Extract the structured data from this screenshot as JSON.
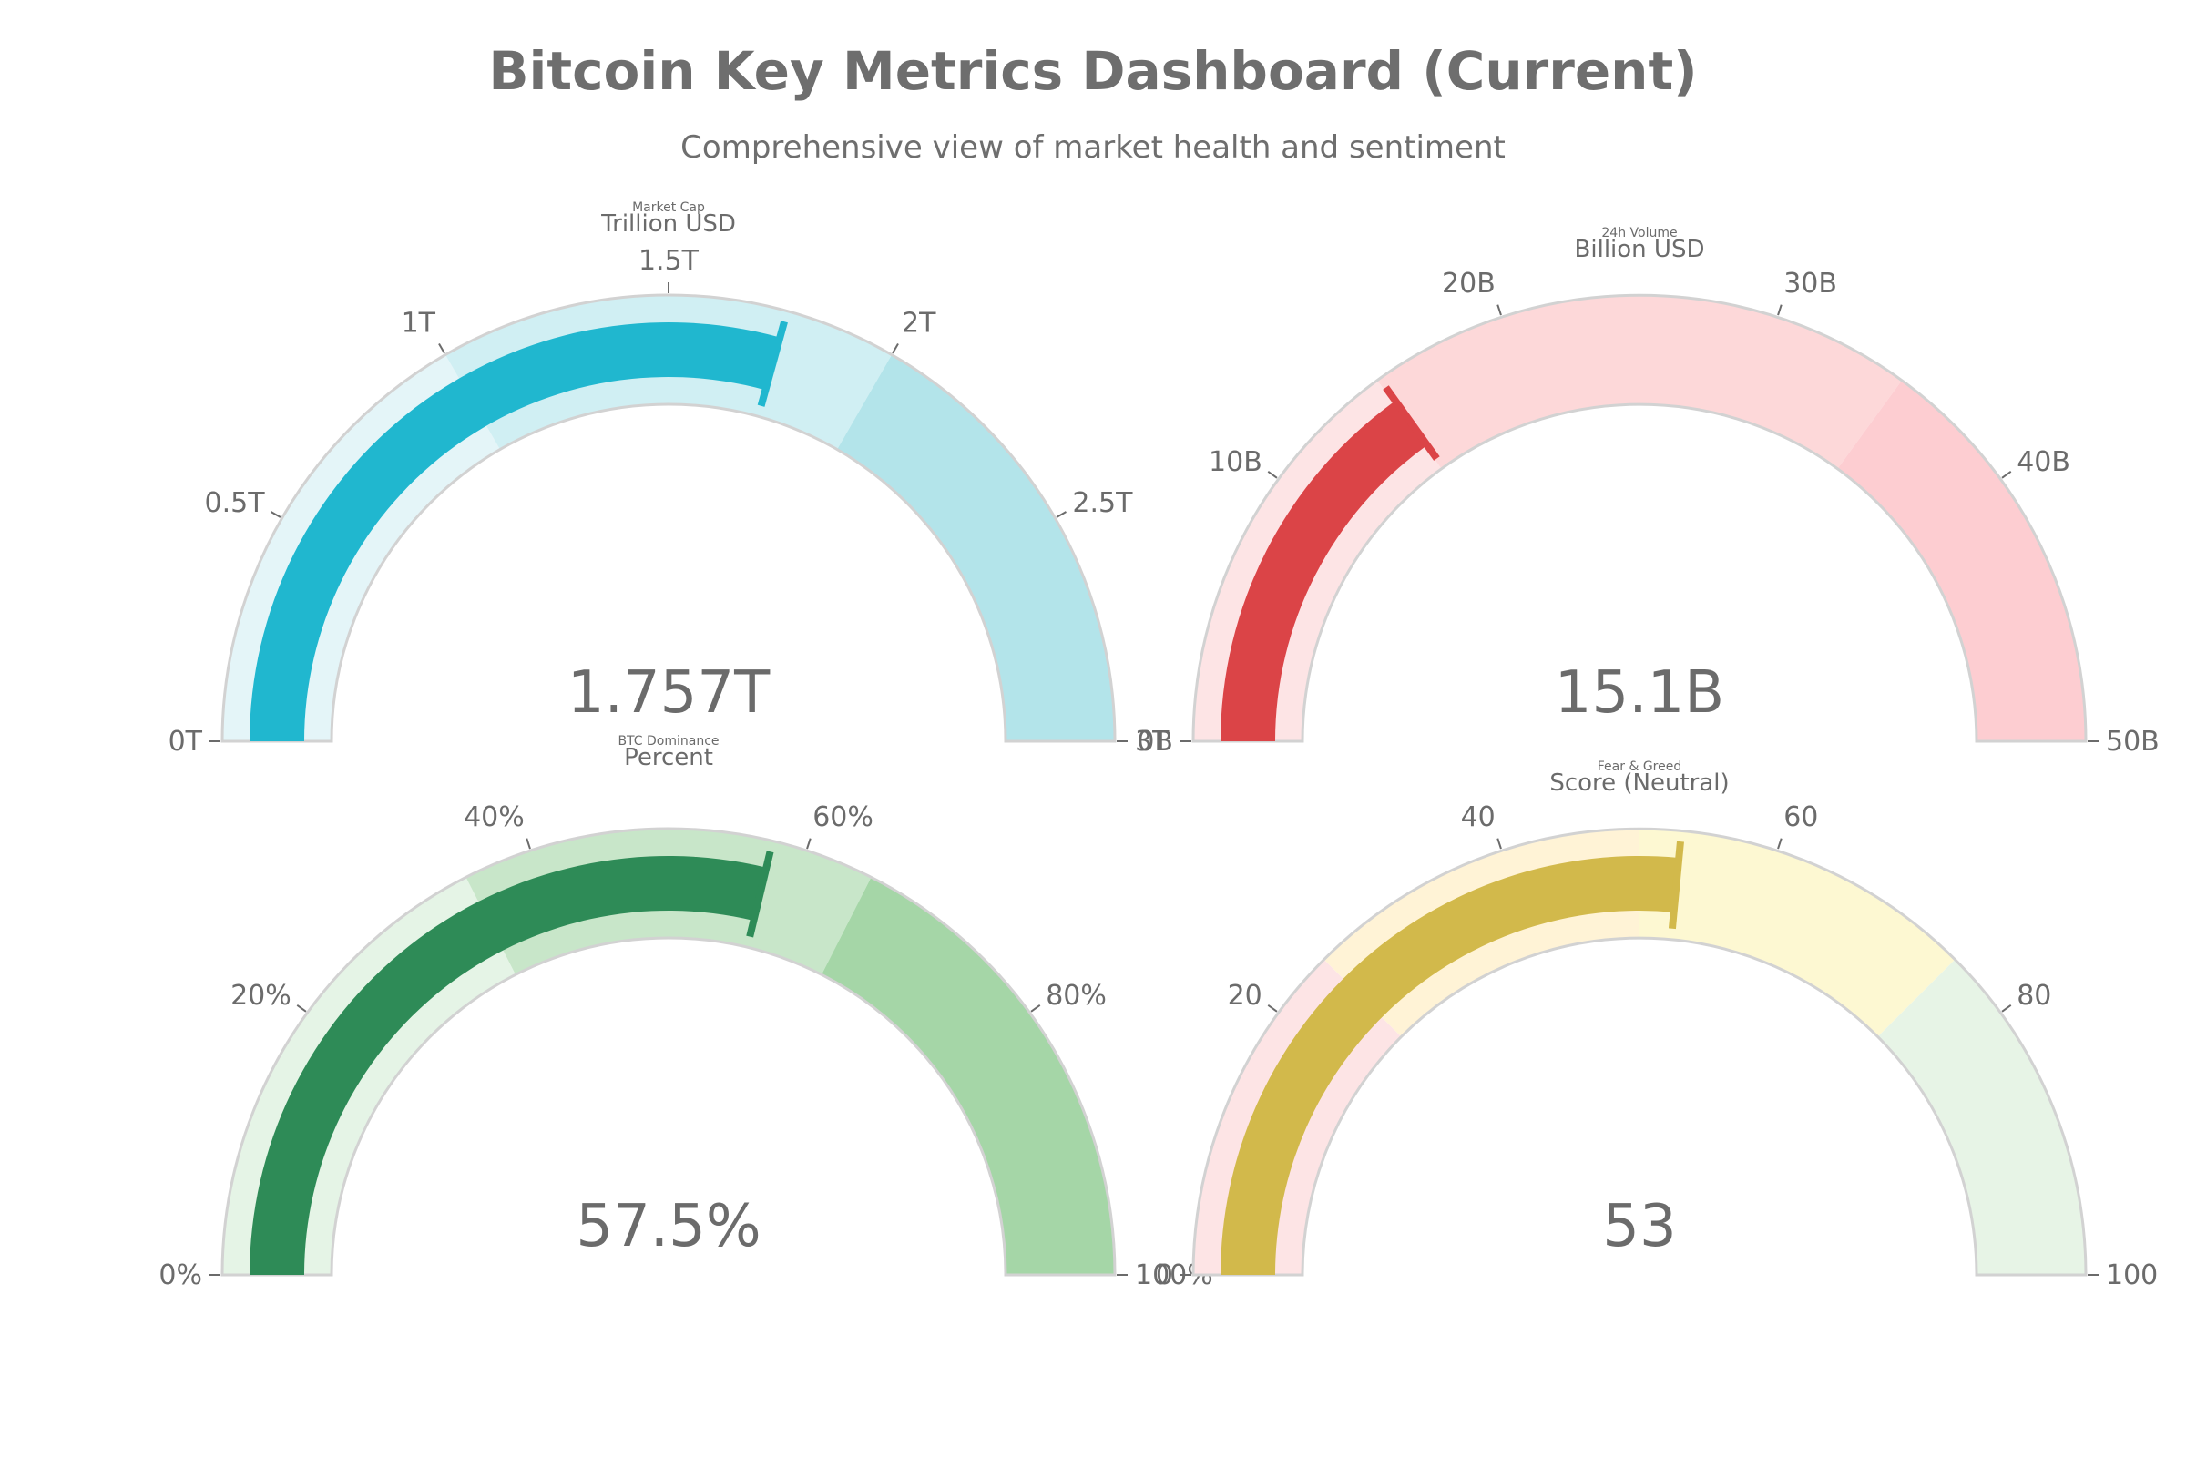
{
  "title": "Bitcoin Key Metrics Dashboard (Current)",
  "subtitle": "Comprehensive view of market health and sentiment",
  "chart_data": [
    {
      "type": "gauge",
      "title": "Market Cap",
      "unit_label": "Trillion USD",
      "value": 1.757,
      "value_label": "1.757T",
      "range": [
        0,
        3
      ],
      "ticks": [
        0,
        0.5,
        1,
        1.5,
        2,
        2.5,
        3
      ],
      "tick_labels": [
        "0T",
        "0.5T",
        "1T",
        "1.5T",
        "2T",
        "2.5T",
        "3T"
      ],
      "bar_color": "#20b7cf",
      "steps": [
        {
          "range": [
            0,
            1
          ],
          "color": "#e4f5f8"
        },
        {
          "range": [
            1,
            2
          ],
          "color": "#d0eff3"
        },
        {
          "range": [
            2,
            3
          ],
          "color": "#b3e4ea"
        }
      ]
    },
    {
      "type": "gauge",
      "title": "24h Volume",
      "unit_label": "Billion USD",
      "value": 15.1,
      "value_label": "15.1B",
      "range": [
        0,
        50
      ],
      "ticks": [
        0,
        10,
        20,
        30,
        40,
        50
      ],
      "tick_labels": [
        "0B",
        "10B",
        "20B",
        "30B",
        "40B",
        "50B"
      ],
      "bar_color": "#db4447",
      "steps": [
        {
          "range": [
            0,
            15
          ],
          "color": "#fde4e5"
        },
        {
          "range": [
            15,
            35
          ],
          "color": "#fdd8d9"
        },
        {
          "range": [
            35,
            50
          ],
          "color": "#fdcdd1"
        }
      ]
    },
    {
      "type": "gauge",
      "title": "BTC Dominance",
      "unit_label": "Percent",
      "value": 57.5,
      "value_label": "57.5%",
      "range": [
        0,
        100
      ],
      "ticks": [
        0,
        20,
        40,
        60,
        80,
        100
      ],
      "tick_labels": [
        "0%",
        "20%",
        "40%",
        "60%",
        "80%",
        "100%"
      ],
      "bar_color": "#2e8b57",
      "steps": [
        {
          "range": [
            0,
            35
          ],
          "color": "#e5f4e6"
        },
        {
          "range": [
            35,
            65
          ],
          "color": "#c8e6c9"
        },
        {
          "range": [
            65,
            100
          ],
          "color": "#a5d6a7"
        }
      ]
    },
    {
      "type": "gauge",
      "title": "Fear & Greed",
      "unit_label": "Score (Neutral)",
      "value": 53,
      "value_label": "53",
      "range": [
        0,
        100
      ],
      "ticks": [
        0,
        20,
        40,
        60,
        80,
        100
      ],
      "tick_labels": [
        "0",
        "20",
        "40",
        "60",
        "80",
        "100"
      ],
      "bar_color": "#d2b94b",
      "steps": [
        {
          "range": [
            0,
            25
          ],
          "color": "#fde4e5"
        },
        {
          "range": [
            25,
            50
          ],
          "color": "#fff3d6"
        },
        {
          "range": [
            50,
            75
          ],
          "color": "#fdf8d2"
        },
        {
          "range": [
            75,
            100
          ],
          "color": "#e7f4e6"
        }
      ]
    }
  ]
}
